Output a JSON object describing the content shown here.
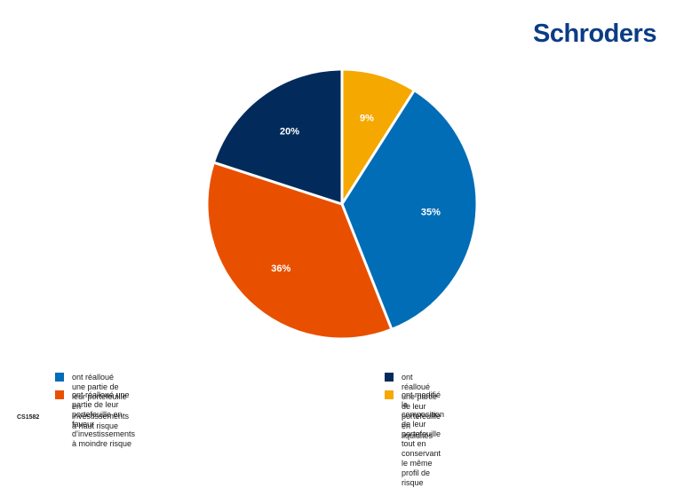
{
  "logo": {
    "text": "Schroders"
  },
  "chart_data": {
    "type": "pie",
    "start_angle_deg": 0,
    "direction": "clockwise",
    "slices": [
      {
        "label": "ont modifié la composition de leur portefeuille tout en conservant le même profil de risque",
        "value": 9,
        "value_label": "9%",
        "color": "#f5a800"
      },
      {
        "label": "ont réalloué une partie de leur portefeuille en investissements à haut risque",
        "value": 35,
        "value_label": "35%",
        "color": "#006db6"
      },
      {
        "label": "ont réalloué une partie de leur portefeuille en faveur d'investissements à moindre risque",
        "value": 36,
        "value_label": "36%",
        "color": "#e85000"
      },
      {
        "label": "ont réalloué une partie de leur portefeuille en liquidités",
        "value": 20,
        "value_label": "20%",
        "color": "#022b5b"
      }
    ]
  },
  "legend": {
    "items": [
      {
        "text": "ont réalloué une partie de leur portefeuille en investissements à haut risque",
        "color": "#006db6"
      },
      {
        "text": "ont réalloué une partie de leur portefeuille en liquidités",
        "color": "#022b5b"
      },
      {
        "text": "ont réalloué une partie de leur portefeuille en faveur d’investissements\nà moindre risque",
        "color": "#e85000"
      },
      {
        "text": "ont modifié la composition de leur portefeuille tout en\nconservant le même profil de risque",
        "color": "#f5a800"
      }
    ]
  },
  "footer": {
    "code": "CS1582"
  }
}
